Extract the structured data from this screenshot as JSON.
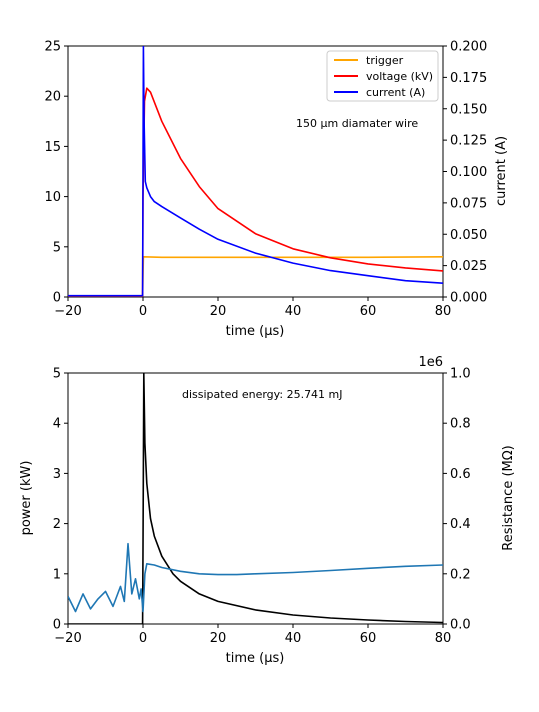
{
  "chart_data": [
    {
      "type": "line",
      "xlabel": "time (μs)",
      "ylabel": "",
      "y2label": "current (A)",
      "xlim": [
        -20,
        80
      ],
      "ylim": [
        0,
        25
      ],
      "y2lim": [
        0,
        0.2
      ],
      "x_ticks": [
        "−20",
        "0",
        "20",
        "40",
        "60",
        "80"
      ],
      "y_ticks": [
        "0",
        "5",
        "10",
        "15",
        "20",
        "25"
      ],
      "y2_ticks": [
        "0.000",
        "0.025",
        "0.050",
        "0.075",
        "0.100",
        "0.125",
        "0.150",
        "0.175",
        "0.200"
      ],
      "annotation": "150 μm diamater wire",
      "legend_position": "top-right",
      "grid": false,
      "series": [
        {
          "name": "trigger",
          "color": "#ffa500",
          "axis": "left",
          "x": [
            -20,
            -0.1,
            0,
            0.1,
            5,
            20,
            40,
            60,
            80
          ],
          "y": [
            0.1,
            0.1,
            2.0,
            4.0,
            3.95,
            3.95,
            3.95,
            3.95,
            4.0
          ]
        },
        {
          "name": "voltage (kV)",
          "color": "#ff0000",
          "axis": "left",
          "x": [
            -20,
            -0.1,
            0,
            0.4,
            1,
            2,
            5,
            10,
            15,
            20,
            30,
            40,
            50,
            60,
            70,
            80
          ],
          "y": [
            0.1,
            0.1,
            10,
            19.5,
            20.8,
            20.4,
            17.5,
            13.8,
            11.0,
            8.8,
            6.3,
            4.8,
            3.9,
            3.3,
            2.9,
            2.6
          ]
        },
        {
          "name": "current (A)",
          "color": "#0000ff",
          "axis": "right",
          "x": [
            -20,
            -0.1,
            0,
            0.1,
            0.3,
            0.6,
            1,
            2,
            3,
            5,
            10,
            15,
            20,
            30,
            40,
            50,
            60,
            70,
            80
          ],
          "y": [
            0.001,
            0.001,
            0.1,
            0.2,
            0.14,
            0.092,
            0.087,
            0.08,
            0.076,
            0.072,
            0.063,
            0.054,
            0.046,
            0.035,
            0.027,
            0.021,
            0.017,
            0.013,
            0.011
          ]
        }
      ]
    },
    {
      "type": "line",
      "xlabel": "time (μs)",
      "ylabel": "power (kW)",
      "y2label": "Resistance (MΩ)",
      "y2_offset_label": "1e6",
      "xlim": [
        -20,
        80
      ],
      "ylim": [
        0,
        5
      ],
      "y2lim": [
        0,
        1.0
      ],
      "x_ticks": [
        "−20",
        "0",
        "20",
        "40",
        "60",
        "80"
      ],
      "y_ticks": [
        "0",
        "1",
        "2",
        "3",
        "4",
        "5"
      ],
      "y2_ticks": [
        "0.0",
        "0.2",
        "0.4",
        "0.6",
        "0.8",
        "1.0"
      ],
      "annotation": "dissipated energy: 25.741 mJ",
      "grid": false,
      "series": [
        {
          "color": "#000000",
          "axis": "left",
          "x": [
            -20,
            -0.1,
            0,
            0.2,
            0.5,
            1,
            2,
            3,
            5,
            8,
            10,
            15,
            20,
            30,
            40,
            50,
            60,
            70,
            80
          ],
          "y": [
            0.0,
            0.0,
            1.5,
            5.0,
            3.6,
            2.8,
            2.1,
            1.75,
            1.35,
            1.0,
            0.85,
            0.6,
            0.45,
            0.28,
            0.18,
            0.12,
            0.08,
            0.05,
            0.03
          ]
        },
        {
          "color": "#1f77b4",
          "axis": "right",
          "x": [
            -20,
            -18,
            -16,
            -14,
            -12,
            -10,
            -8,
            -6,
            -5,
            -4,
            -3,
            -2,
            -1,
            -0.5,
            0,
            0.5,
            1,
            3,
            5,
            10,
            15,
            20,
            25,
            30,
            40,
            50,
            60,
            70,
            80
          ],
          "y": [
            0.11,
            0.05,
            0.12,
            0.06,
            0.1,
            0.13,
            0.07,
            0.15,
            0.09,
            0.32,
            0.12,
            0.18,
            0.1,
            0.14,
            0.05,
            0.2,
            0.24,
            0.235,
            0.225,
            0.21,
            0.2,
            0.197,
            0.197,
            0.2,
            0.205,
            0.213,
            0.222,
            0.23,
            0.235
          ]
        }
      ]
    }
  ]
}
